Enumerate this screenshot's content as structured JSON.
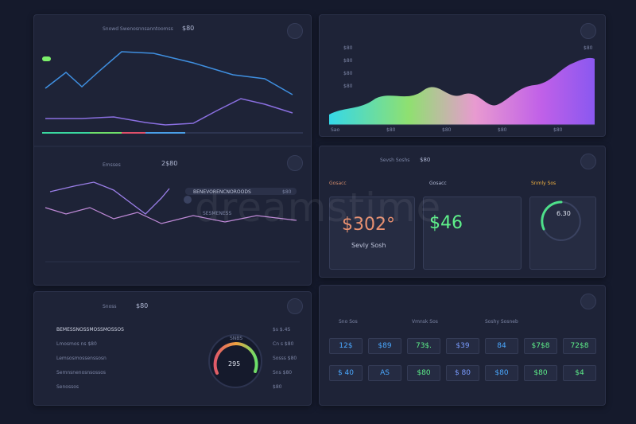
{
  "line_panel": {
    "title": "Snowd Swenosnnsanntoomss",
    "value": "$80",
    "second_title": "Emsses",
    "second_value": "2$80",
    "bar_label": "BENEVORENCNOROODS",
    "bar_value": "$80",
    "knob_label": "SESMENESS"
  },
  "area_panel": {
    "ylabels": [
      "$80",
      "$80",
      "$80",
      "$80"
    ],
    "xlabels": [
      "Sao",
      "$80",
      "$80",
      "$80",
      "$80"
    ],
    "top_label": "$80"
  },
  "stats_panel": {
    "title": "Sevsh Soshs",
    "value": "$80",
    "cards": [
      {
        "heading": "Gosacc",
        "value": "$302°",
        "label": "Sevly Sosh"
      },
      {
        "heading": "Gosacc",
        "value": "$46"
      },
      {
        "heading": "Snmly Sos",
        "value": "6.30"
      }
    ]
  },
  "gauge_panel": {
    "title": "Snoss",
    "value": "$80",
    "gauge_title": "SNBS",
    "gauge": "295",
    "rows": [
      {
        "label": "BEMESSNOSSMOSSMOSSOS",
        "value": "$s $.4S"
      },
      {
        "label": "Lmosmos ns $80",
        "value": "Cn s $80"
      },
      {
        "label": "Lemsosmossenssosn",
        "value": "Sosss $80"
      },
      {
        "label": "Semnsnenosnsossos",
        "value": "Sns $80"
      },
      {
        "label": "Senossos",
        "value": "$80"
      }
    ]
  },
  "table_panel": {
    "headers": [
      "Sno Sos",
      "Vmnsk Sos",
      "Soshy Sosneb"
    ],
    "row1": [
      "12$",
      "$89",
      "73$.",
      "$39",
      "84",
      "$7$8",
      "72$8"
    ],
    "row2": [
      "$ 40",
      "AS",
      "$80",
      "$ 80",
      "$80",
      "$80",
      "$4"
    ]
  },
  "watermark": "dreamstime"
}
